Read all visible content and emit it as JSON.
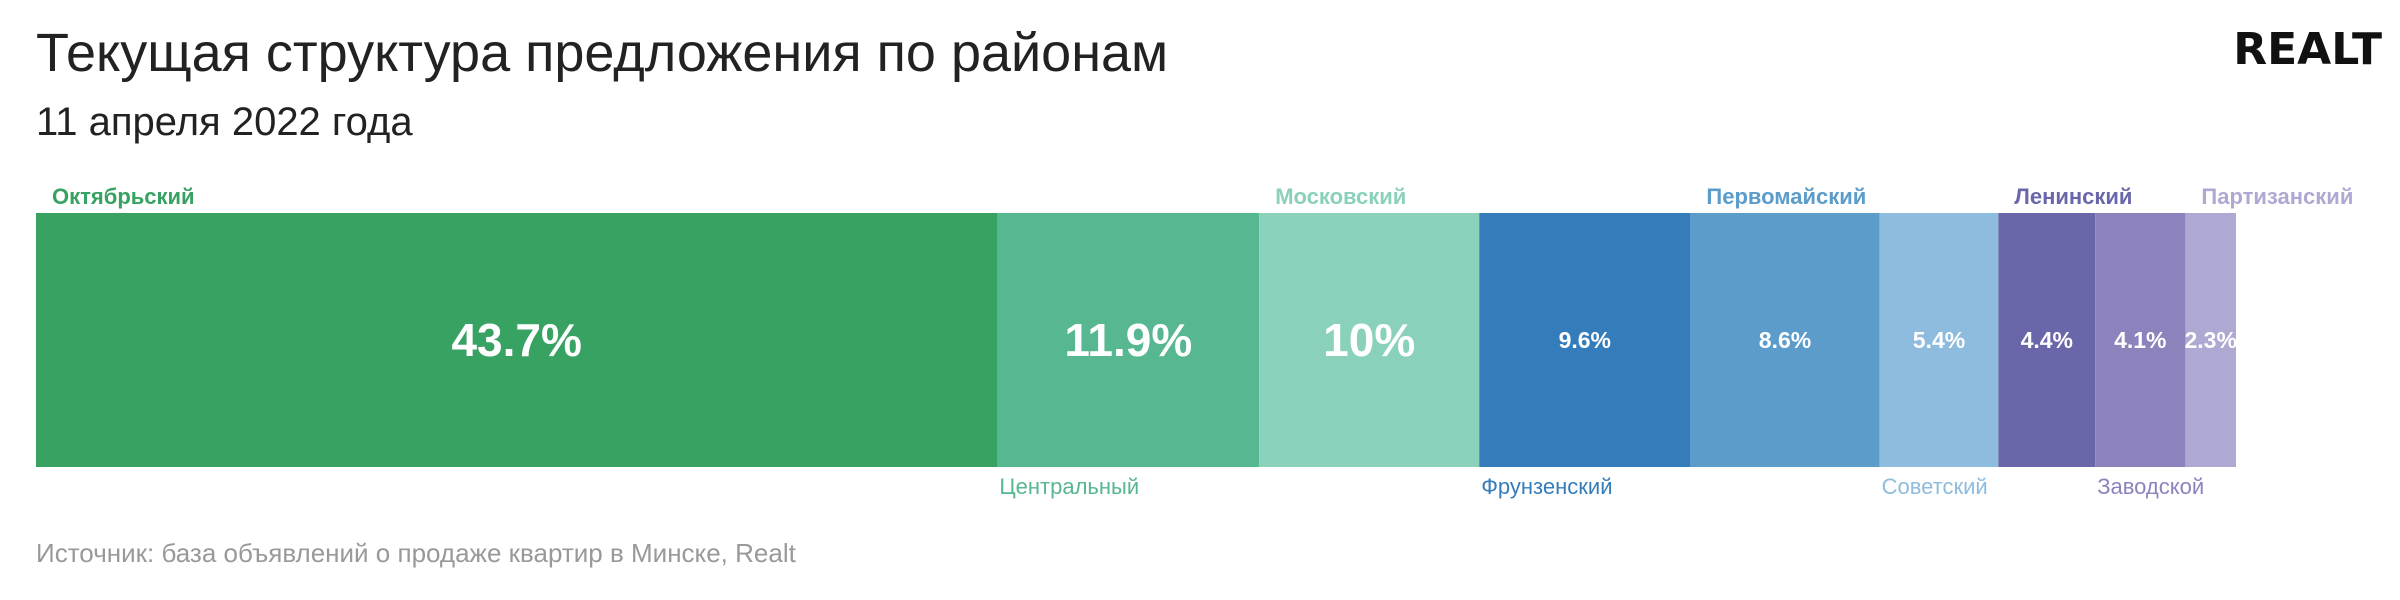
{
  "header": {
    "title": "Текущая структура предложения по районам",
    "subtitle": "11 апреля 2022 года",
    "logo_text": "REALT"
  },
  "footer": {
    "source": "Источник: база объявлений о продаже квартир в Минске, Realt"
  },
  "chart_data": {
    "type": "bar",
    "orientation": "horizontal-stacked",
    "title": "Текущая структура предложения по районам",
    "subtitle": "11 апреля 2022 года",
    "unit": "%",
    "categories": [
      "Октябрьский",
      "Центральный",
      "Московский",
      "Фрунзенский",
      "Первомайский",
      "Советский",
      "Ленинский",
      "Заводской",
      "Партизанский"
    ],
    "values": [
      43.7,
      11.9,
      10,
      9.6,
      8.6,
      5.4,
      4.4,
      4.1,
      2.3
    ],
    "value_labels": [
      "43.7%",
      "11.9%",
      "10%",
      "9.6%",
      "8.6%",
      "5.4%",
      "4.4%",
      "4.1%",
      "2.3%"
    ],
    "colors": [
      "#38a262",
      "#56b791",
      "#8ad1bc",
      "#357dba",
      "#5b9ccb",
      "#8ebcde",
      "#6a66aa",
      "#8c83bd",
      "#ada9d3"
    ],
    "label_colors": [
      "#38a262",
      "#56b791",
      "#8ad1bc",
      "#357dba",
      "#5b9ccb",
      "#8ebcde",
      "#6a66aa",
      "#8c83bd",
      "#ada9d3"
    ],
    "label_positions": [
      "top",
      "bottom",
      "top",
      "bottom",
      "top",
      "bottom",
      "top",
      "bottom",
      "top"
    ],
    "legend": "none",
    "grid": false
  }
}
